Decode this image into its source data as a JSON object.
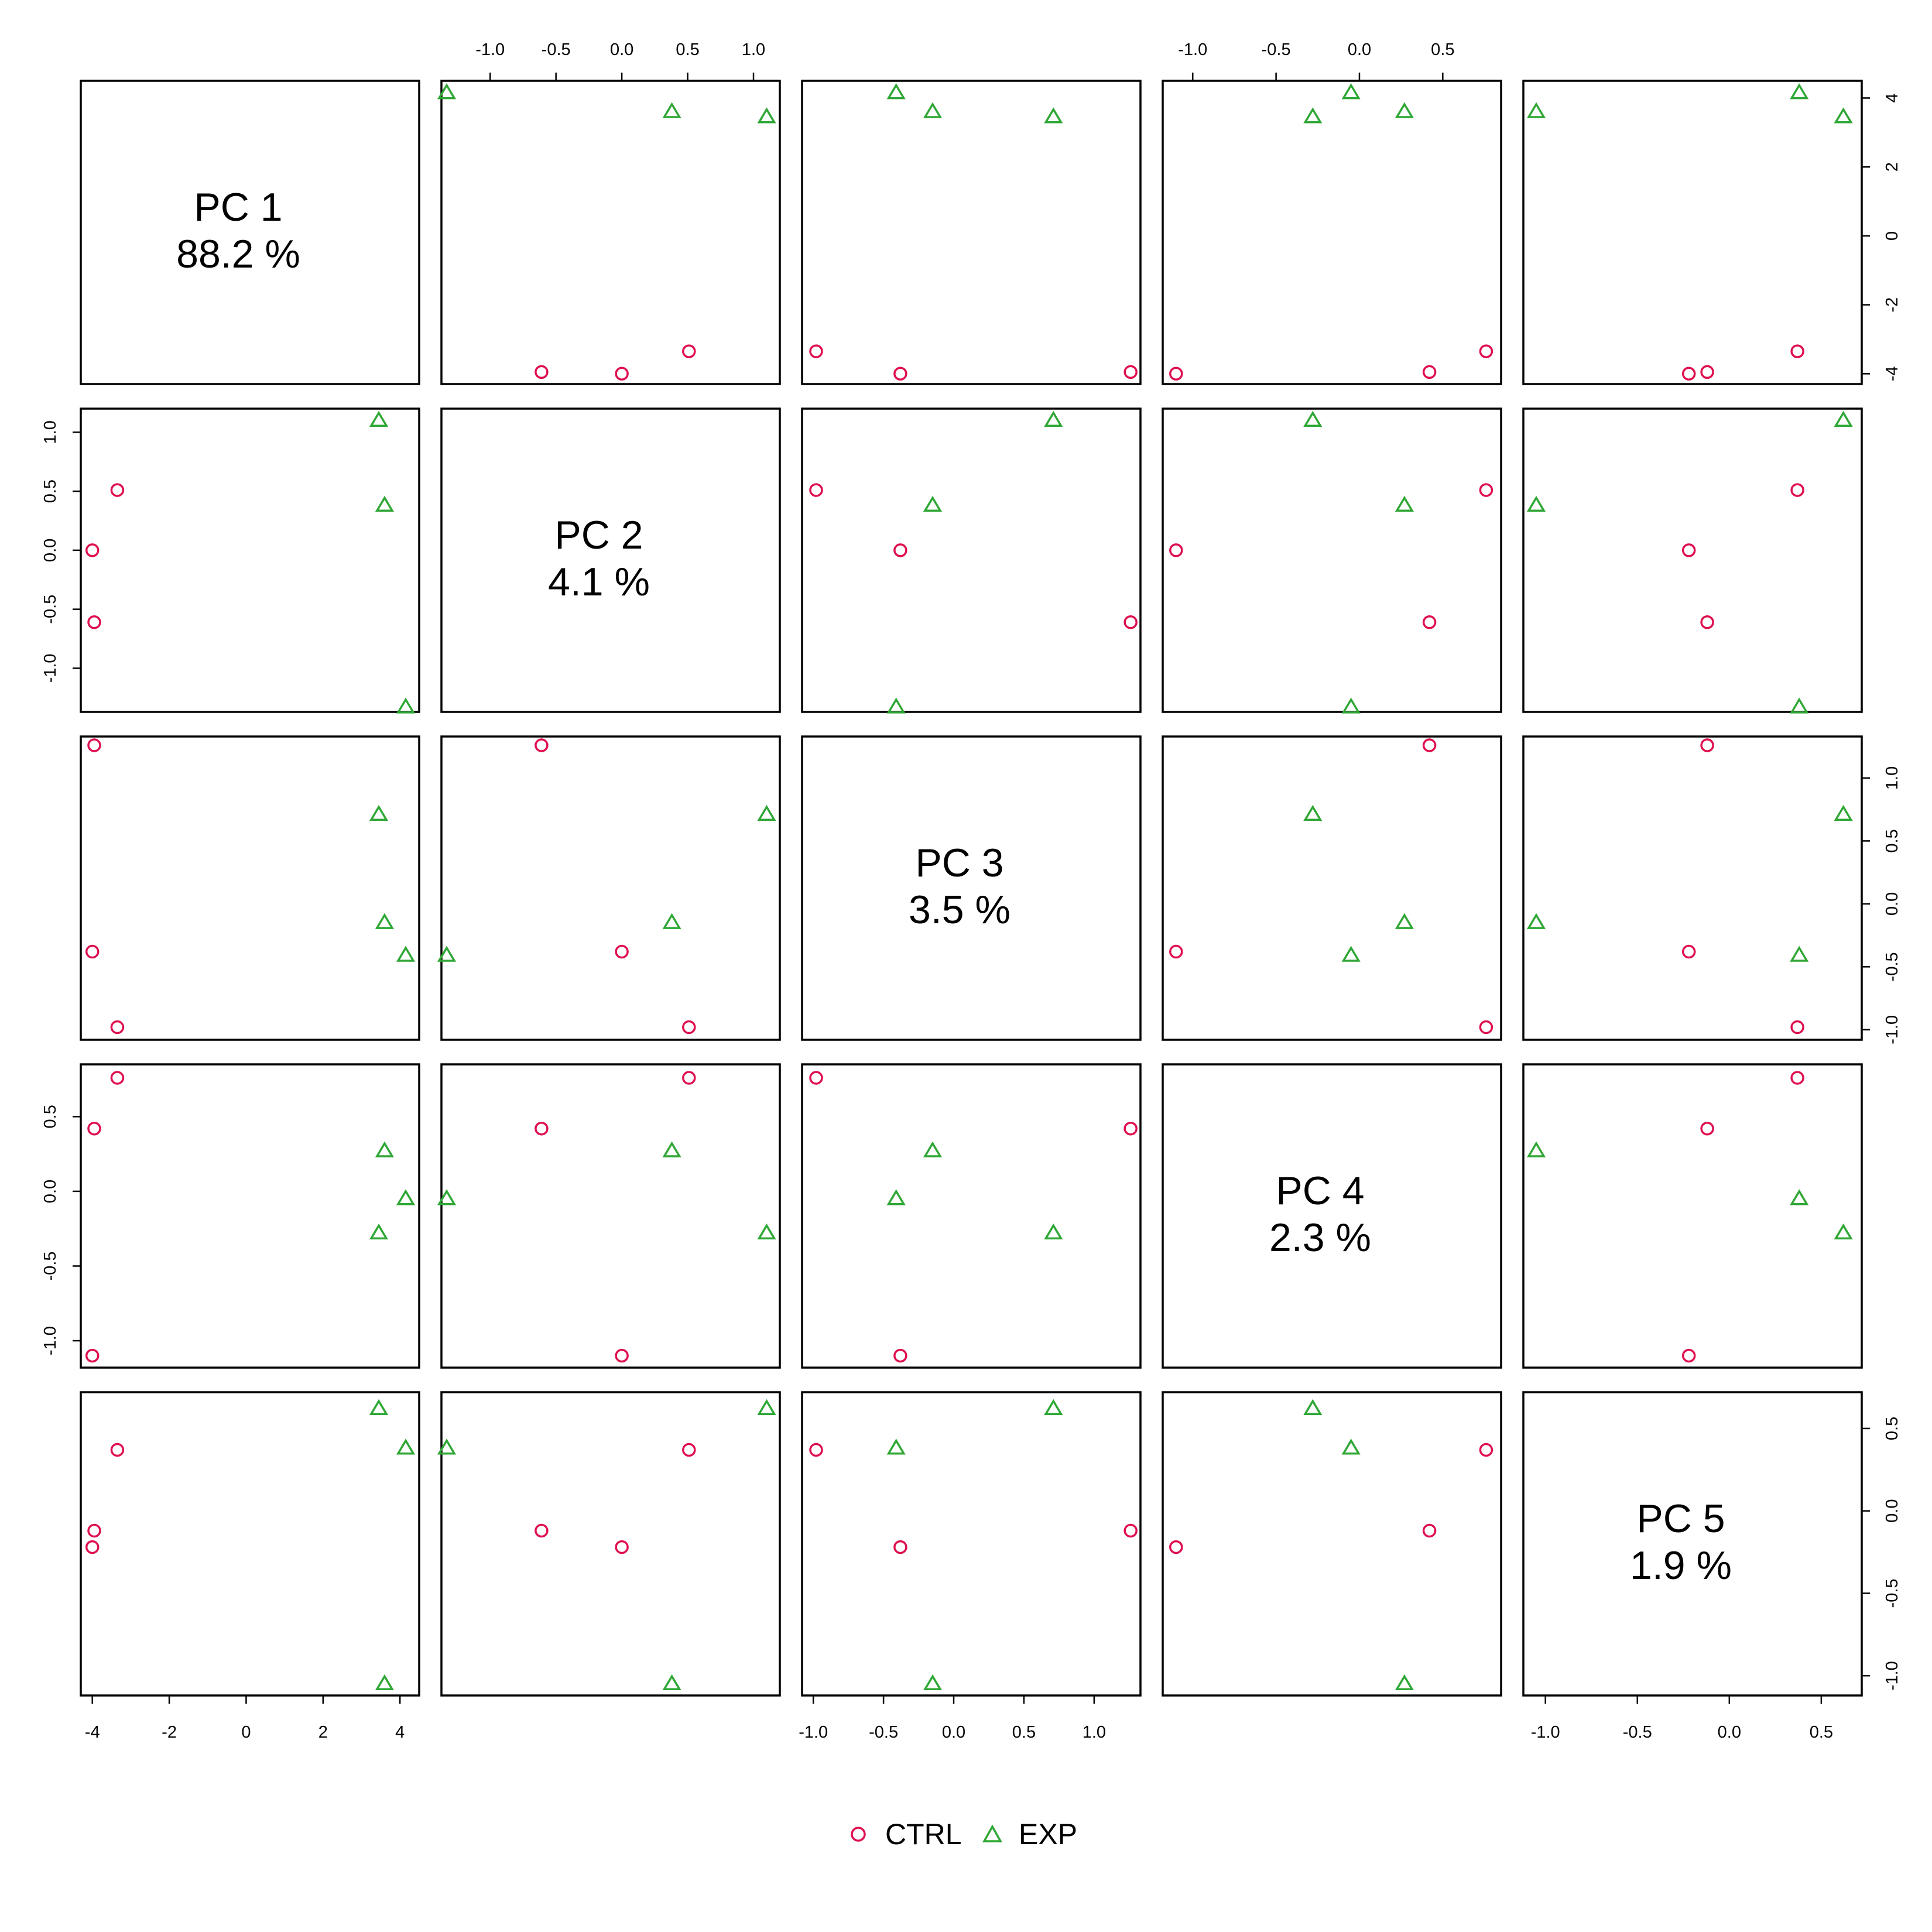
{
  "chart_data": {
    "type": "scatter",
    "subtype": "pairs-matrix",
    "title": "",
    "variables": [
      {
        "name": "PC 1",
        "pct": "88.2 %",
        "lim": [
          -4.3,
          4.5
        ],
        "ticks": [
          -4,
          -2,
          0,
          2,
          4
        ],
        "tick_labels": [
          "-4",
          "-2",
          "0",
          "2",
          "4"
        ]
      },
      {
        "name": "PC 2",
        "pct": "4.1 %",
        "lim": [
          -1.37,
          1.2
        ],
        "ticks": [
          -1.0,
          -0.5,
          0.0,
          0.5,
          1.0
        ],
        "tick_labels": [
          "-1.0",
          "-0.5",
          "0.0",
          "0.5",
          "1.0"
        ]
      },
      {
        "name": "PC 3",
        "pct": "3.5 %",
        "lim": [
          -1.08,
          1.33
        ],
        "ticks": [
          -1.0,
          -0.5,
          0.0,
          0.5,
          1.0
        ],
        "tick_labels": [
          "-1.0",
          "-0.5",
          "0.0",
          "0.5",
          "1.0"
        ]
      },
      {
        "name": "PC 4",
        "pct": "2.3 %",
        "lim": [
          -1.18,
          0.85
        ],
        "ticks": [
          -1.0,
          -0.5,
          0.0,
          0.5
        ],
        "tick_labels": [
          "-1.0",
          "-0.5",
          "0.0",
          "0.5"
        ]
      },
      {
        "name": "PC 5",
        "pct": "1.9 %",
        "lim": [
          -1.12,
          0.72
        ],
        "ticks": [
          -1.0,
          -0.5,
          0.0,
          0.5
        ],
        "tick_labels": [
          "-1.0",
          "-0.5",
          "0.0",
          "0.5"
        ]
      }
    ],
    "series": [
      {
        "name": "CTRL",
        "marker": "circle",
        "color": "#DF0F4F",
        "points": [
          {
            "pc1": -3.35,
            "pc2": 0.51,
            "pc3": -0.98,
            "pc4": 0.76,
            "pc5": 0.37
          },
          {
            "pc1": -3.95,
            "pc2": -0.61,
            "pc3": 1.26,
            "pc4": 0.42,
            "pc5": -0.12
          },
          {
            "pc1": -4.0,
            "pc2": 0.0,
            "pc3": -0.38,
            "pc4": -1.1,
            "pc5": -0.22
          }
        ]
      },
      {
        "name": "EXP",
        "marker": "triangle",
        "color": "#2FA735",
        "points": [
          {
            "pc1": 4.15,
            "pc2": -1.33,
            "pc3": -0.41,
            "pc4": -0.05,
            "pc5": 0.38
          },
          {
            "pc1": 3.6,
            "pc2": 0.38,
            "pc3": -0.15,
            "pc4": 0.27,
            "pc5": -1.05
          },
          {
            "pc1": 3.45,
            "pc2": 1.1,
            "pc3": 0.71,
            "pc4": -0.28,
            "pc5": 0.62
          }
        ]
      }
    ],
    "legend": {
      "position": "bottom-center",
      "entries": [
        "CTRL",
        "EXP"
      ]
    },
    "grid": false
  }
}
